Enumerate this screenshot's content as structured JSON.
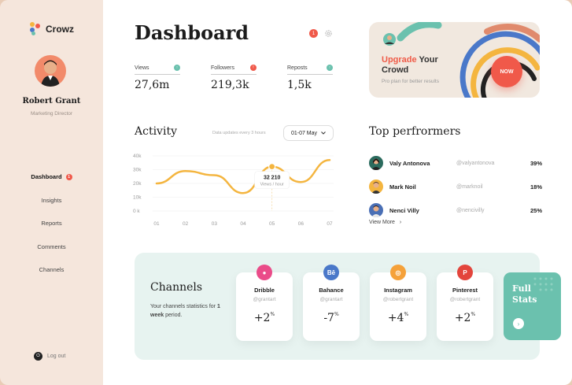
{
  "brand": {
    "name": "Crowz"
  },
  "user": {
    "name": "Robert Grant",
    "role": "Marketing Director"
  },
  "nav": {
    "items": [
      {
        "label": "Dashboard",
        "active": true,
        "badge": "1"
      },
      {
        "label": "Insights"
      },
      {
        "label": "Reports"
      },
      {
        "label": "Comments"
      },
      {
        "label": "Channels"
      }
    ],
    "logout": "Log out"
  },
  "header": {
    "title": "Dashboard",
    "notification_count": "1"
  },
  "stats": [
    {
      "label": "Views",
      "value": "27,6m",
      "dot": "↑",
      "dot_color": "#6bc1ae"
    },
    {
      "label": "Followers",
      "value": "219,3k",
      "dot": "!",
      "dot_color": "#f0594a"
    },
    {
      "label": "Reposts",
      "value": "1,5k",
      "dot": "↑",
      "dot_color": "#6bc1ae"
    }
  ],
  "upgrade": {
    "title_highlight": "Upgrade",
    "title_rest_1": " Your",
    "title_rest_2": "Crowd",
    "subtitle": "Pro plan for better results",
    "button": "NOW"
  },
  "activity": {
    "title": "Activity",
    "note": "Data updates every 3 hours",
    "date_range": "01-07 May",
    "tooltip_value": "32 210",
    "tooltip_label": "Views / hour"
  },
  "chart_data": {
    "type": "line",
    "categories": [
      "01",
      "02",
      "03",
      "04",
      "05",
      "06",
      "07"
    ],
    "y_ticks": [
      "40k",
      "30k",
      "20k",
      "10k",
      "0 k"
    ],
    "ylim": [
      0,
      40000
    ],
    "series": [
      {
        "values": [
          20000,
          29000,
          26000,
          13000,
          32210,
          21000,
          37000
        ]
      }
    ],
    "highlight_index": 4,
    "color": "#f4b53f"
  },
  "performers": {
    "title": "Top perfrormers",
    "items": [
      {
        "name": "Valy Antonova",
        "handle": "@valyantonova",
        "pct": "39%",
        "color": "#2b6b5e"
      },
      {
        "name": "Mark Noil",
        "handle": "@marknoil",
        "pct": "18%",
        "color": "#f4b53f"
      },
      {
        "name": "Nenci Villy",
        "handle": "@nencivilly",
        "pct": "25%",
        "color": "#4a6fb5"
      }
    ],
    "view_more": "View More"
  },
  "channels": {
    "title": "Channels",
    "desc_1": "Your channels statistics for ",
    "desc_bold": "1 week",
    "desc_2": " period.",
    "cards": [
      {
        "name": "Dribble",
        "handle": "@grantart",
        "change": "+2",
        "unit": "%",
        "icon_text": "●",
        "icon_color": "#ea4c89"
      },
      {
        "name": "Bahance",
        "handle": "@grantart",
        "change": "-7",
        "unit": "%",
        "icon_text": "Bē",
        "icon_color": "#4a78c9"
      },
      {
        "name": "Instagram",
        "handle": "@robertgrant",
        "change": "+4",
        "unit": "%",
        "icon_text": "◎",
        "icon_color": "#f5a13a"
      },
      {
        "name": "Pinterest",
        "handle": "@robertgrant",
        "change": "+2",
        "unit": "%",
        "icon_text": "P",
        "icon_color": "#e3453c"
      }
    ],
    "full_stats_1": "Full",
    "full_stats_2": "Stats",
    "full_stats_arrow": "›"
  }
}
